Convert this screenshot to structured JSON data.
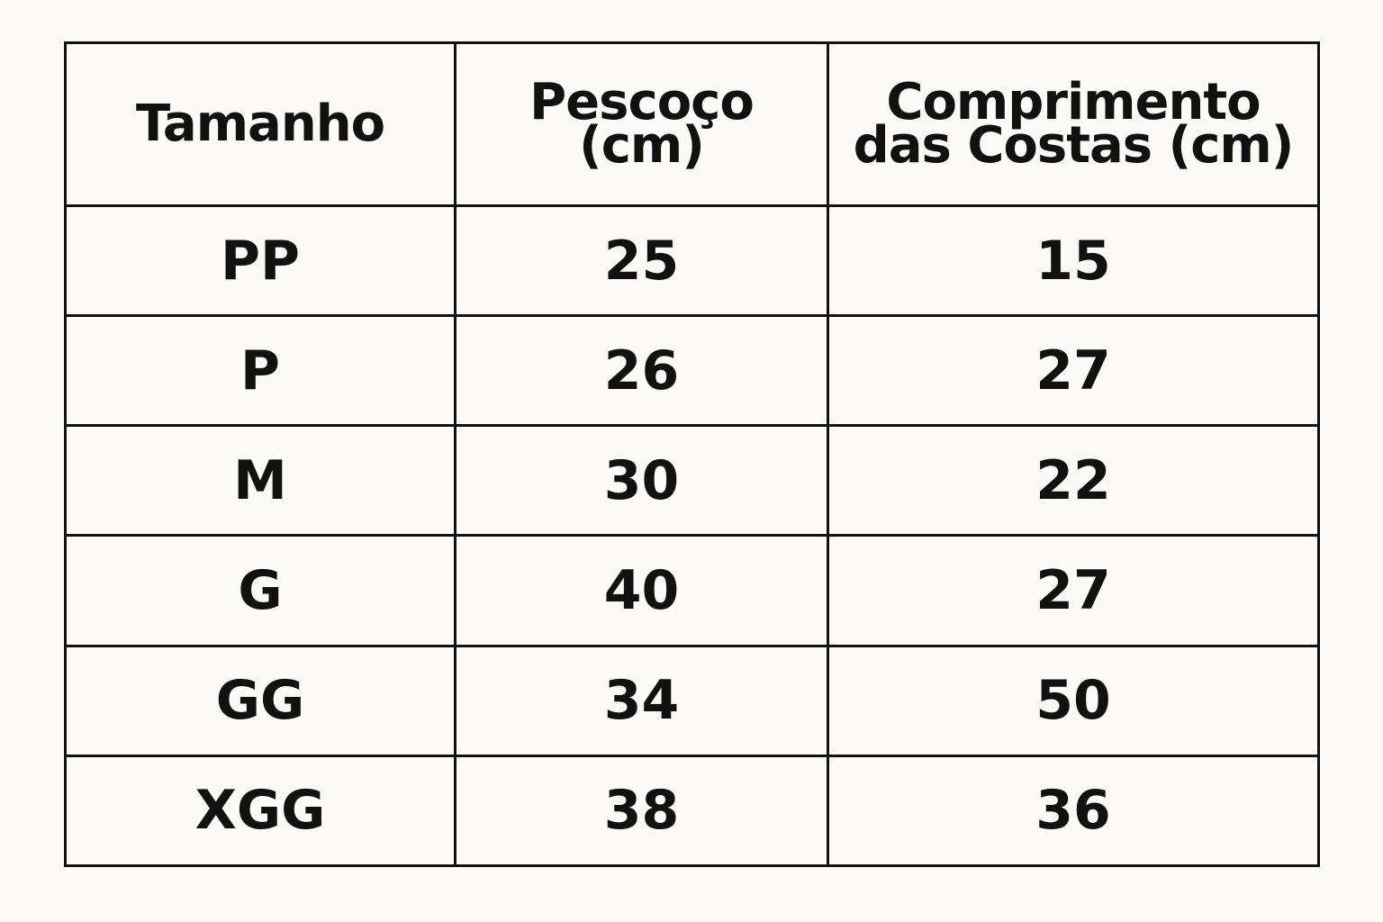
{
  "table": {
    "headers": [
      {
        "lines": [
          "Tamanho"
        ]
      },
      {
        "lines": [
          "Pescoço",
          "(cm)"
        ]
      },
      {
        "lines": [
          "Comprimento",
          "das Costas (cm)"
        ]
      }
    ],
    "rows": [
      [
        "PP",
        "25",
        "15"
      ],
      [
        "P",
        "26",
        "27"
      ],
      [
        "M",
        "30",
        "22"
      ],
      [
        "G",
        "40",
        "27"
      ],
      [
        "GG",
        "34",
        "50"
      ],
      [
        "XGG",
        "38",
        "36"
      ]
    ]
  }
}
